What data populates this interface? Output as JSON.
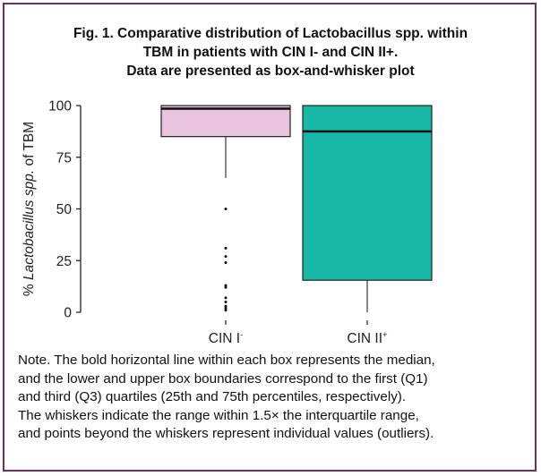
{
  "figure": {
    "title_lines": [
      "Fig. 1. Comparative distribution of Lactobacillus spp. within",
      "TBM in patients with CIN I- and CIN II+.",
      "Data are presented as box-and-whisker plot"
    ],
    "note_lines": [
      "Note. The bold horizontal line within each box represents the median,",
      "and the lower and upper box boundaries correspond to the first (Q1)",
      "and third (Q3) quartiles (25th and 75th percentiles, respectively).",
      "The whiskers indicate the range within 1.5× the interquartile range,",
      "and points beyond the whiskers represent individual values (outliers)."
    ],
    "frame_color": "#7a2a63"
  },
  "chart_data": {
    "type": "box",
    "ylabel_prefix": "% ",
    "ylabel_italic": "Lactobacillus spp.",
    "ylabel_suffix": " of TBM",
    "ylim": [
      0,
      100
    ],
    "yticks": [
      0,
      25,
      50,
      75,
      100
    ],
    "grid": false,
    "categories": [
      {
        "base": "CIN I",
        "sup": "-"
      },
      {
        "base": "CIN II",
        "sup": "+"
      }
    ],
    "series": [
      {
        "category": "CIN I-",
        "min": 65,
        "q1": 85,
        "median": 98.5,
        "q3": 100,
        "max": 100,
        "outliers": [
          50,
          31,
          27,
          24,
          13,
          12,
          7,
          5,
          3,
          2,
          1
        ],
        "color": "#e8c4df"
      },
      {
        "category": "CIN II+",
        "min": 0,
        "q1": 15.5,
        "median": 87.5,
        "q3": 100,
        "max": 100,
        "outliers": [],
        "color": "#17b8a6"
      }
    ]
  }
}
